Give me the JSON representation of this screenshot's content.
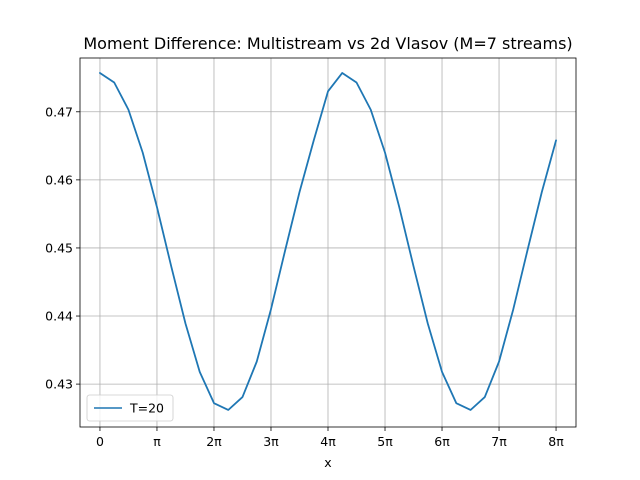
{
  "chart_data": {
    "type": "line",
    "title": "Moment Difference: Multistream vs 2d Vlasov (M=7 streams)",
    "xlabel": "x",
    "ylabel": "",
    "x_tick_labels": [
      "0",
      "π",
      "2π",
      "3π",
      "4π",
      "5π",
      "6π",
      "7π",
      "8π"
    ],
    "y_ticks": [
      0.43,
      0.44,
      0.45,
      0.46,
      0.47
    ],
    "y_tick_labels": [
      "0.43",
      "0.44",
      "0.45",
      "0.46",
      "0.47"
    ],
    "xlim": [
      -0.35,
      8.35
    ],
    "ylim": [
      0.4237,
      0.4779
    ],
    "grid": true,
    "legend_position": "lower-left",
    "series": [
      {
        "name": "T=20",
        "color": "#1f77b4",
        "x": [
          0,
          0.25,
          0.5,
          0.75,
          1,
          1.25,
          1.5,
          1.75,
          2,
          2.25,
          2.5,
          2.75,
          3,
          3.25,
          3.5,
          3.75,
          4,
          4.25,
          4.5,
          4.75,
          5,
          5.25,
          5.5,
          5.75,
          6,
          6.25,
          6.5,
          6.75,
          7,
          7.25,
          7.5,
          7.75,
          8
        ],
        "y": [
          0.4757,
          0.4743,
          0.4703,
          0.464,
          0.456,
          0.4473,
          0.4389,
          0.4318,
          0.4272,
          0.4262,
          0.4281,
          0.4333,
          0.441,
          0.4497,
          0.4582,
          0.4658,
          0.473,
          0.4757,
          0.4743,
          0.4703,
          0.464,
          0.456,
          0.4473,
          0.4389,
          0.4318,
          0.4272,
          0.4262,
          0.4281,
          0.4333,
          0.441,
          0.4497,
          0.4582,
          0.4658
        ]
      }
    ]
  }
}
